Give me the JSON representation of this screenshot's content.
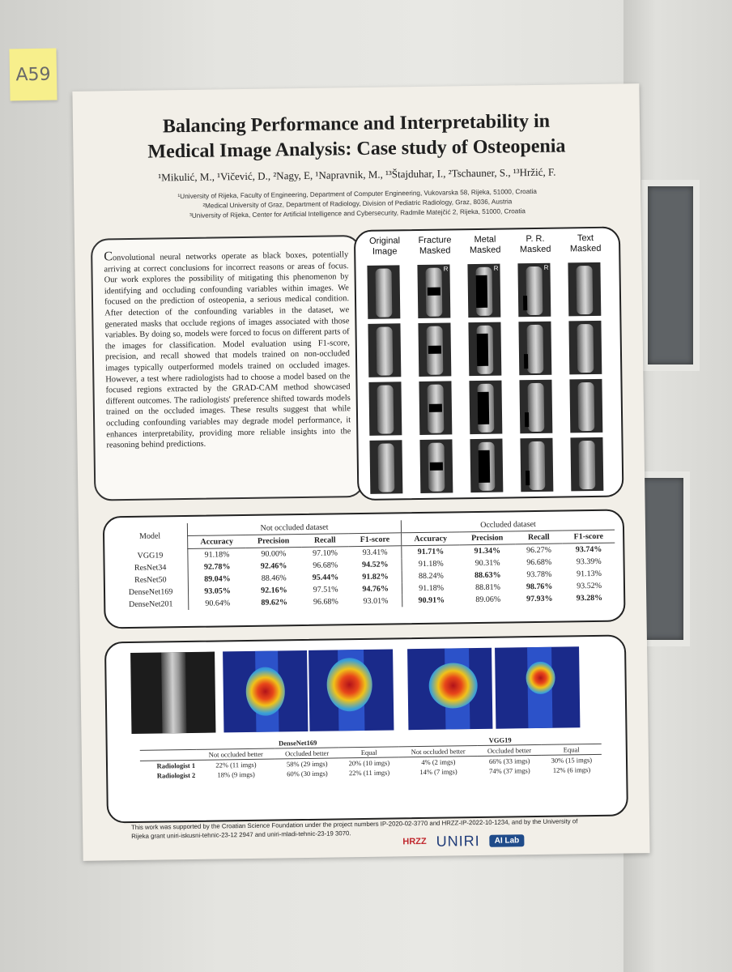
{
  "sticky": {
    "label": "A59"
  },
  "poster": {
    "title_line1": "Balancing Performance and Interpretability in",
    "title_line2": "Medical Image Analysis: Case study of Osteopenia",
    "authors": "¹Mikulić, M., ¹Vičević, D., ²Nagy, E, ¹Napravnik, M., ¹³Štajduhar, I., ²Tschauner, S., ¹³Hržić, F.",
    "affiliations": [
      "¹University of Rijeka, Faculty of Engineering, Department of Computer Engineering, Vukovarska 58, Rijeka, 51000, Croatia",
      "²Medical University of Graz, Department of Radiology, Division of Pediatric Radiology, Graz, 8036, Austria",
      "³University of Rijeka, Center for Artificial Intelligence and Cybersecurity, Radmile Matejčić 2, Rijeka, 51000, Croatia"
    ],
    "abstract_first_letter": "C",
    "abstract_rest": "onvolutional neural networks operate as black boxes, potentially arriving at correct conclusions for incorrect reasons or areas of focus. Our work explores the possibility of mitigating this phenomenon by identifying and occluding confounding variables within images. We focused on the prediction of osteopenia, a serious medical condition. After detection of the confounding variables in the dataset, we generated masks that occlude regions of images associated with those variables. By doing so, models were forced to focus on different parts of the images for classification. Model evaluation using F1-score, precision, and recall showed that models trained on non-occluded images typically outperformed models trained on occluded images. However, a test where radiologists had to choose a model based on the focused regions extracted by the GRAD-CAM method showcased different outcomes. The radiologists' preference shifted towards models trained on the occluded images. These results suggest that while occluding confounding variables may degrade model performance, it enhances interpretability, providing more reliable insights into the reasoning behind predictions.",
    "xray_columns": [
      "Original Image",
      "Fracture Masked",
      "Metal Masked",
      "P. R. Masked",
      "Text Masked"
    ],
    "xray_tag": "R",
    "results": {
      "model_header": "Model",
      "group_not_occluded": "Not occluded dataset",
      "group_occluded": "Occluded dataset",
      "metrics": [
        "Accuracy",
        "Precision",
        "Recall",
        "F1-score"
      ],
      "rows": [
        {
          "model": "VGG19",
          "v": [
            "91.18%",
            "90.00%",
            "97.10%",
            "93.41%",
            "91.71%",
            "91.34%",
            "96.27%",
            "93.74%"
          ],
          "b": [
            0,
            0,
            0,
            0,
            1,
            1,
            0,
            1
          ]
        },
        {
          "model": "ResNet34",
          "v": [
            "92.78%",
            "92.46%",
            "96.68%",
            "94.52%",
            "91.18%",
            "90.31%",
            "96.68%",
            "93.39%"
          ],
          "b": [
            1,
            1,
            0,
            1,
            0,
            0,
            0,
            0
          ]
        },
        {
          "model": "ResNet50",
          "v": [
            "89.04%",
            "88.46%",
            "95.44%",
            "91.82%",
            "88.24%",
            "88.63%",
            "93.78%",
            "91.13%"
          ],
          "b": [
            1,
            0,
            1,
            1,
            0,
            1,
            0,
            0
          ]
        },
        {
          "model": "DenseNet169",
          "v": [
            "93.05%",
            "92.16%",
            "97.51%",
            "94.76%",
            "91.18%",
            "88.81%",
            "98.76%",
            "93.52%"
          ],
          "b": [
            1,
            1,
            0,
            1,
            0,
            0,
            1,
            0
          ]
        },
        {
          "model": "DenseNet201",
          "v": [
            "90.64%",
            "89.62%",
            "96.68%",
            "93.01%",
            "90.91%",
            "89.06%",
            "97.93%",
            "93.28%"
          ],
          "b": [
            0,
            1,
            0,
            0,
            1,
            0,
            1,
            1
          ]
        }
      ]
    },
    "radiologists": {
      "group1": "DenseNet169",
      "group2": "VGG19",
      "cols": [
        "Not occluded better",
        "Occluded better",
        "Equal"
      ],
      "rows": [
        {
          "label": "Radiologist 1",
          "v": [
            "22% (11 imgs)",
            "58% (29 imgs)",
            "20% (10 imgs)",
            "4% (2 imgs)",
            "66% (33 imgs)",
            "30% (15 imgs)"
          ]
        },
        {
          "label": "Radiologist 2",
          "v": [
            "18% (9 imgs)",
            "60% (30 imgs)",
            "22% (11 imgs)",
            "14% (7 imgs)",
            "74% (37 imgs)",
            "12% (6 imgs)"
          ]
        }
      ]
    },
    "footer": "This work was supported by the Croatian Science Foundation under the project numbers IP-2020-02-3770 and HRZZ-IP-2022-10-1234, and by the University of Rijeka grant uniri-iskusni-tehnic-23-12 2947 and uniri-mladi-tehnic-23-19 3070.",
    "logos": {
      "hrzz": "HRZZ",
      "uniri": "UNIRI",
      "ailab": "AI Lab"
    }
  }
}
